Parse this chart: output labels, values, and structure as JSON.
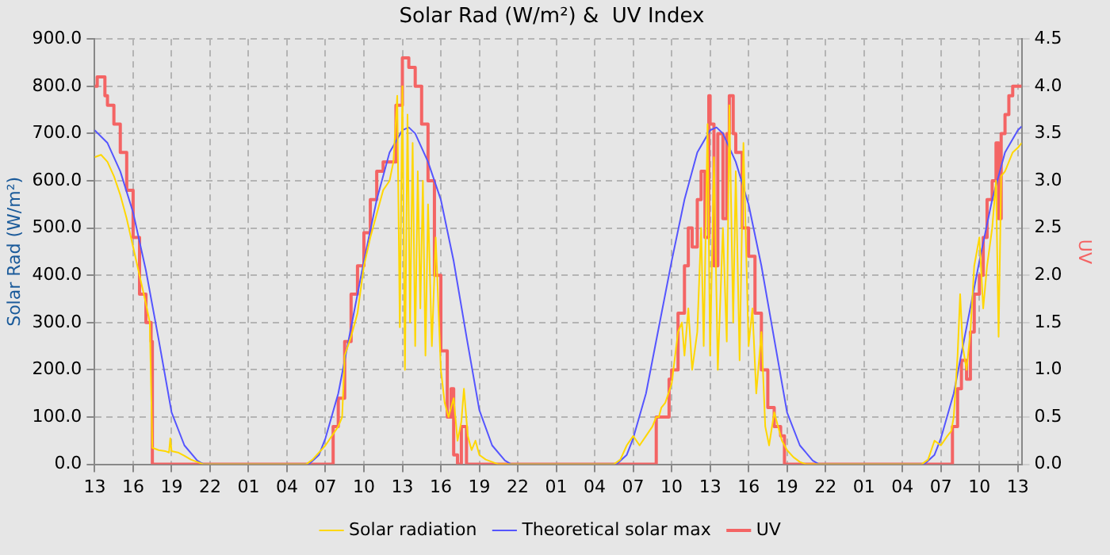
{
  "chart_data": {
    "type": "line",
    "title": "Solar Rad (W/m²) &  UV Index",
    "ylabel": "Solar Rad (W/m²)",
    "y2label": "UV",
    "xlim": [
      "--01-01T13:00",
      "--01-04T13:18"
    ],
    "xticks": [
      {
        "value": "--01-01T13:00",
        "label": "13"
      },
      {
        "value": "--01-01T16:00",
        "label": "16"
      },
      {
        "value": "--01-01T19:00",
        "label": "19"
      },
      {
        "value": "--01-01T22:00",
        "label": "22"
      },
      {
        "value": "--01-02T01:00",
        "label": "01"
      },
      {
        "value": "--01-02T04:00",
        "label": "04"
      },
      {
        "value": "--01-02T07:00",
        "label": "07"
      },
      {
        "value": "--01-02T10:00",
        "label": "10"
      },
      {
        "value": "--01-02T13:00",
        "label": "13"
      },
      {
        "value": "--01-02T16:00",
        "label": "16"
      },
      {
        "value": "--01-02T19:00",
        "label": "19"
      },
      {
        "value": "--01-02T22:00",
        "label": "22"
      },
      {
        "value": "--01-03T01:00",
        "label": "01"
      },
      {
        "value": "--01-03T04:00",
        "label": "04"
      },
      {
        "value": "--01-03T07:00",
        "label": "07"
      },
      {
        "value": "--01-03T10:00",
        "label": "10"
      },
      {
        "value": "--01-03T13:00",
        "label": "13"
      },
      {
        "value": "--01-03T16:00",
        "label": "16"
      },
      {
        "value": "--01-03T19:00",
        "label": "19"
      },
      {
        "value": "--01-03T22:00",
        "label": "22"
      },
      {
        "value": "--01-04T01:00",
        "label": "01"
      },
      {
        "value": "--01-04T04:00",
        "label": "04"
      },
      {
        "value": "--01-04T07:00",
        "label": "07"
      },
      {
        "value": "--01-04T10:00",
        "label": "10"
      },
      {
        "value": "--01-04T13:00",
        "label": "13"
      }
    ],
    "ylim": [
      0,
      900
    ],
    "yticks": [
      {
        "value": 0,
        "label": "0.0"
      },
      {
        "value": 100,
        "label": "100.0"
      },
      {
        "value": 200,
        "label": "200.0"
      },
      {
        "value": 300,
        "label": "300.0"
      },
      {
        "value": 400,
        "label": "400.0"
      },
      {
        "value": 500,
        "label": "500.0"
      },
      {
        "value": 600,
        "label": "600.0"
      },
      {
        "value": 700,
        "label": "700.0"
      },
      {
        "value": 800,
        "label": "800.0"
      },
      {
        "value": 900,
        "label": "900.0"
      }
    ],
    "y2lim": [
      0,
      4.5
    ],
    "y2ticks": [
      {
        "value": 0,
        "label": "0.0"
      },
      {
        "value": 0.5,
        "label": "0.5"
      },
      {
        "value": 1,
        "label": "1.0"
      },
      {
        "value": 1.5,
        "label": "1.5"
      },
      {
        "value": 2,
        "label": "2.0"
      },
      {
        "value": 2.5,
        "label": "2.5"
      },
      {
        "value": 3,
        "label": "3.0"
      },
      {
        "value": 3.5,
        "label": "3.5"
      },
      {
        "value": 4,
        "label": "4.0"
      },
      {
        "value": 4.5,
        "label": "4.5"
      }
    ],
    "grid": true,
    "legend": "bottom",
    "marker": "none",
    "line_style": "solid",
    "series": [
      {
        "name": "Solar radiation",
        "type": "line",
        "color": "#ffd700",
        "x": [
          "--01-01T13:00",
          "--01-01T13:30",
          "--01-01T14:00",
          "--01-01T14:30",
          "--01-01T15:00",
          "--01-01T15:30",
          "--01-01T16:00",
          "--01-01T16:30",
          "--01-01T17:00",
          "--01-01T17:18",
          "--01-01T17:30",
          "--01-01T18:00",
          "--01-01T18:30",
          "--01-01T18:48",
          "--01-01T18:54",
          "--01-01T19:00",
          "--01-01T19:30",
          "--01-01T20:00",
          "--01-01T20:30",
          "--01-01T21:00",
          "--01-01T21:30",
          "--01-02T05:30",
          "--01-02T06:00",
          "--01-02T07:00",
          "--01-02T08:00",
          "--01-02T08:18",
          "--01-02T08:30",
          "--01-02T09:00",
          "--01-02T09:30",
          "--01-02T10:00",
          "--01-02T10:30",
          "--01-02T11:00",
          "--01-02T11:30",
          "--01-02T12:00",
          "--01-02T12:18",
          "--01-02T12:36",
          "--01-02T12:48",
          "--01-02T13:00",
          "--01-02T13:12",
          "--01-02T13:24",
          "--01-02T13:36",
          "--01-02T13:48",
          "--01-02T14:00",
          "--01-02T14:12",
          "--01-02T14:24",
          "--01-02T14:36",
          "--01-02T14:48",
          "--01-02T15:00",
          "--01-02T15:18",
          "--01-02T15:36",
          "--01-02T16:00",
          "--01-02T16:18",
          "--01-02T16:36",
          "--01-02T17:00",
          "--01-02T17:18",
          "--01-02T17:36",
          "--01-02T17:48",
          "--01-02T18:06",
          "--01-02T18:24",
          "--01-02T18:42",
          "--01-02T19:00",
          "--01-02T19:30",
          "--01-02T20:00",
          "--01-02T20:30",
          "--01-03T05:30",
          "--01-03T06:00",
          "--01-03T06:30",
          "--01-03T07:00",
          "--01-03T07:30",
          "--01-03T08:00",
          "--01-03T08:30",
          "--01-03T08:48",
          "--01-03T09:00",
          "--01-03T09:12",
          "--01-03T09:30",
          "--01-03T10:00",
          "--01-03T10:30",
          "--01-03T10:48",
          "--01-03T11:00",
          "--01-03T11:18",
          "--01-03T11:36",
          "--01-03T12:00",
          "--01-03T12:18",
          "--01-03T12:30",
          "--01-03T12:48",
          "--01-03T13:00",
          "--01-03T13:18",
          "--01-03T13:36",
          "--01-03T14:00",
          "--01-03T14:18",
          "--01-03T14:30",
          "--01-03T14:48",
          "--01-03T15:00",
          "--01-03T15:18",
          "--01-03T15:36",
          "--01-03T16:00",
          "--01-03T16:18",
          "--01-03T16:36",
          "--01-03T17:00",
          "--01-03T17:18",
          "--01-03T17:36",
          "--01-03T18:00",
          "--01-03T18:18",
          "--01-03T18:36",
          "--01-03T19:00",
          "--01-03T19:30",
          "--01-03T20:00",
          "--01-03T20:30",
          "--01-04T05:30",
          "--01-04T06:00",
          "--01-04T06:30",
          "--01-04T07:00",
          "--01-04T07:30",
          "--01-04T07:48",
          "--01-04T08:00",
          "--01-04T08:18",
          "--01-04T08:30",
          "--01-04T08:42",
          "--01-04T09:00",
          "--01-04T09:18",
          "--01-04T09:36",
          "--01-04T10:00",
          "--01-04T10:18",
          "--01-04T10:36",
          "--01-04T11:00",
          "--01-04T11:18",
          "--01-04T11:30",
          "--01-04T11:42",
          "--01-04T12:00",
          "--01-04T12:18",
          "--01-04T12:36",
          "--01-04T13:00",
          "--01-04T13:18"
        ],
        "values": [
          650,
          655,
          640,
          610,
          570,
          520,
          460,
          400,
          340,
          300,
          35,
          30,
          28,
          25,
          55,
          28,
          25,
          18,
          10,
          5,
          0,
          0,
          10,
          40,
          80,
          100,
          230,
          270,
          320,
          420,
          480,
          530,
          580,
          600,
          640,
          780,
          290,
          800,
          200,
          740,
          300,
          680,
          250,
          620,
          330,
          600,
          230,
          550,
          250,
          480,
          200,
          130,
          100,
          140,
          50,
          90,
          160,
          60,
          30,
          50,
          20,
          10,
          5,
          0,
          0,
          10,
          40,
          60,
          40,
          60,
          80,
          100,
          100,
          120,
          130,
          170,
          280,
          300,
          230,
          330,
          200,
          280,
          500,
          250,
          720,
          230,
          650,
          200,
          500,
          260,
          760,
          300,
          620,
          220,
          680,
          250,
          330,
          150,
          280,
          80,
          40,
          110,
          80,
          50,
          30,
          15,
          5,
          0,
          0,
          10,
          50,
          40,
          60,
          70,
          100,
          230,
          360,
          250,
          200,
          280,
          420,
          480,
          330,
          420,
          500,
          600,
          270,
          610,
          620,
          640,
          660,
          670,
          680
        ]
      },
      {
        "name": "Theoretical solar max",
        "type": "line",
        "color": "#5555ff",
        "x": [
          "--01-01T13:00",
          "--01-01T14:00",
          "--01-01T15:00",
          "--01-01T16:00",
          "--01-01T17:00",
          "--01-01T18:00",
          "--01-01T19:00",
          "--01-01T20:00",
          "--01-01T21:00",
          "--01-01T21:30",
          "--01-02T05:42",
          "--01-02T06:30",
          "--01-02T07:00",
          "--01-02T08:00",
          "--01-02T09:00",
          "--01-02T10:00",
          "--01-02T11:00",
          "--01-02T12:00",
          "--01-02T13:00",
          "--01-02T13:30",
          "--01-02T14:00",
          "--01-02T15:00",
          "--01-02T16:00",
          "--01-02T17:00",
          "--01-02T18:00",
          "--01-02T19:00",
          "--01-02T20:00",
          "--01-02T21:00",
          "--01-02T21:30",
          "--01-03T05:42",
          "--01-03T06:30",
          "--01-03T07:00",
          "--01-03T08:00",
          "--01-03T09:00",
          "--01-03T10:00",
          "--01-03T11:00",
          "--01-03T12:00",
          "--01-03T13:00",
          "--01-03T13:30",
          "--01-03T14:00",
          "--01-03T15:00",
          "--01-03T16:00",
          "--01-03T17:00",
          "--01-03T18:00",
          "--01-03T19:00",
          "--01-03T20:00",
          "--01-03T21:00",
          "--01-03T21:30",
          "--01-04T05:42",
          "--01-04T06:30",
          "--01-04T07:00",
          "--01-04T08:00",
          "--01-04T09:00",
          "--01-04T10:00",
          "--01-04T11:00",
          "--01-04T12:00",
          "--01-04T13:00",
          "--01-04T13:18"
        ],
        "values": [
          707,
          680,
          620,
          533,
          410,
          263,
          110,
          40,
          8,
          0,
          0,
          20,
          55,
          150,
          290,
          430,
          560,
          660,
          707,
          713,
          700,
          640,
          560,
          430,
          270,
          115,
          40,
          8,
          0,
          0,
          20,
          55,
          150,
          290,
          430,
          560,
          660,
          707,
          713,
          700,
          640,
          550,
          420,
          265,
          110,
          40,
          8,
          0,
          0,
          20,
          55,
          150,
          290,
          430,
          560,
          660,
          707,
          715
        ]
      },
      {
        "name": "UV",
        "type": "step",
        "axis": "y2",
        "color": "#f46464",
        "x": [
          "--01-01T13:00",
          "--01-01T13:12",
          "--01-01T13:30",
          "--01-01T13:48",
          "--01-01T14:00",
          "--01-01T14:30",
          "--01-01T15:00",
          "--01-01T15:30",
          "--01-01T16:00",
          "--01-01T16:30",
          "--01-01T17:00",
          "--01-01T17:24",
          "--01-01T17:30",
          "--01-02T07:30",
          "--01-02T07:36",
          "--01-02T08:00",
          "--01-02T08:30",
          "--01-02T09:00",
          "--01-02T09:30",
          "--01-02T10:00",
          "--01-02T10:30",
          "--01-02T11:00",
          "--01-02T11:30",
          "--01-02T12:00",
          "--01-02T12:30",
          "--01-02T13:00",
          "--01-02T13:30",
          "--01-02T14:00",
          "--01-02T14:30",
          "--01-02T15:00",
          "--01-02T15:30",
          "--01-02T16:00",
          "--01-02T16:30",
          "--01-02T16:48",
          "--01-02T17:00",
          "--01-02T17:18",
          "--01-02T17:36",
          "--01-02T18:00",
          "--01-03T08:42",
          "--01-03T08:48",
          "--01-03T09:18",
          "--01-03T09:48",
          "--01-03T10:00",
          "--01-03T10:30",
          "--01-03T11:00",
          "--01-03T11:18",
          "--01-03T11:36",
          "--01-03T12:00",
          "--01-03T12:18",
          "--01-03T12:36",
          "--01-03T12:54",
          "--01-03T13:00",
          "--01-03T13:18",
          "--01-03T13:36",
          "--01-03T14:00",
          "--01-03T14:18",
          "--01-03T14:30",
          "--01-03T14:48",
          "--01-03T15:00",
          "--01-03T15:30",
          "--01-03T16:00",
          "--01-03T16:30",
          "--01-03T17:00",
          "--01-03T17:30",
          "--01-03T18:00",
          "--01-03T18:30",
          "--01-03T18:42",
          "--01-03T18:48",
          "--01-04T07:48",
          "--01-04T07:54",
          "--01-04T08:18",
          "--01-04T08:36",
          "--01-04T09:00",
          "--01-04T09:18",
          "--01-04T09:36",
          "--01-04T10:00",
          "--01-04T10:18",
          "--01-04T10:36",
          "--01-04T11:00",
          "--01-04T11:18",
          "--01-04T11:30",
          "--01-04T11:42",
          "--01-04T12:00",
          "--01-04T12:18",
          "--01-04T12:36",
          "--01-04T13:18"
        ],
        "values": [
          4.0,
          4.1,
          4.1,
          3.9,
          3.8,
          3.6,
          3.3,
          2.9,
          2.4,
          1.8,
          1.5,
          1.3,
          0,
          0,
          0.4,
          0.7,
          1.3,
          1.8,
          2.1,
          2.45,
          2.8,
          3.1,
          3.2,
          3.2,
          3.8,
          4.3,
          4.2,
          4.0,
          3.6,
          3.0,
          2.0,
          1.2,
          0.5,
          0.8,
          0.1,
          0,
          0.4,
          0,
          0,
          0.5,
          0.5,
          0.9,
          1.0,
          1.6,
          2.1,
          2.5,
          2.3,
          2.8,
          3.1,
          2.4,
          3.9,
          3.6,
          2.1,
          3.5,
          2.6,
          3.5,
          3.9,
          3.5,
          3.3,
          2.5,
          2.2,
          1.6,
          1.0,
          0.6,
          0.4,
          0.3,
          0.3,
          0,
          0,
          0.4,
          0.8,
          1.1,
          0.9,
          1.4,
          1.8,
          2.0,
          2.4,
          2.8,
          3.0,
          3.4,
          2.6,
          3.5,
          3.7,
          3.9,
          4.0,
          4.0
        ]
      }
    ]
  }
}
